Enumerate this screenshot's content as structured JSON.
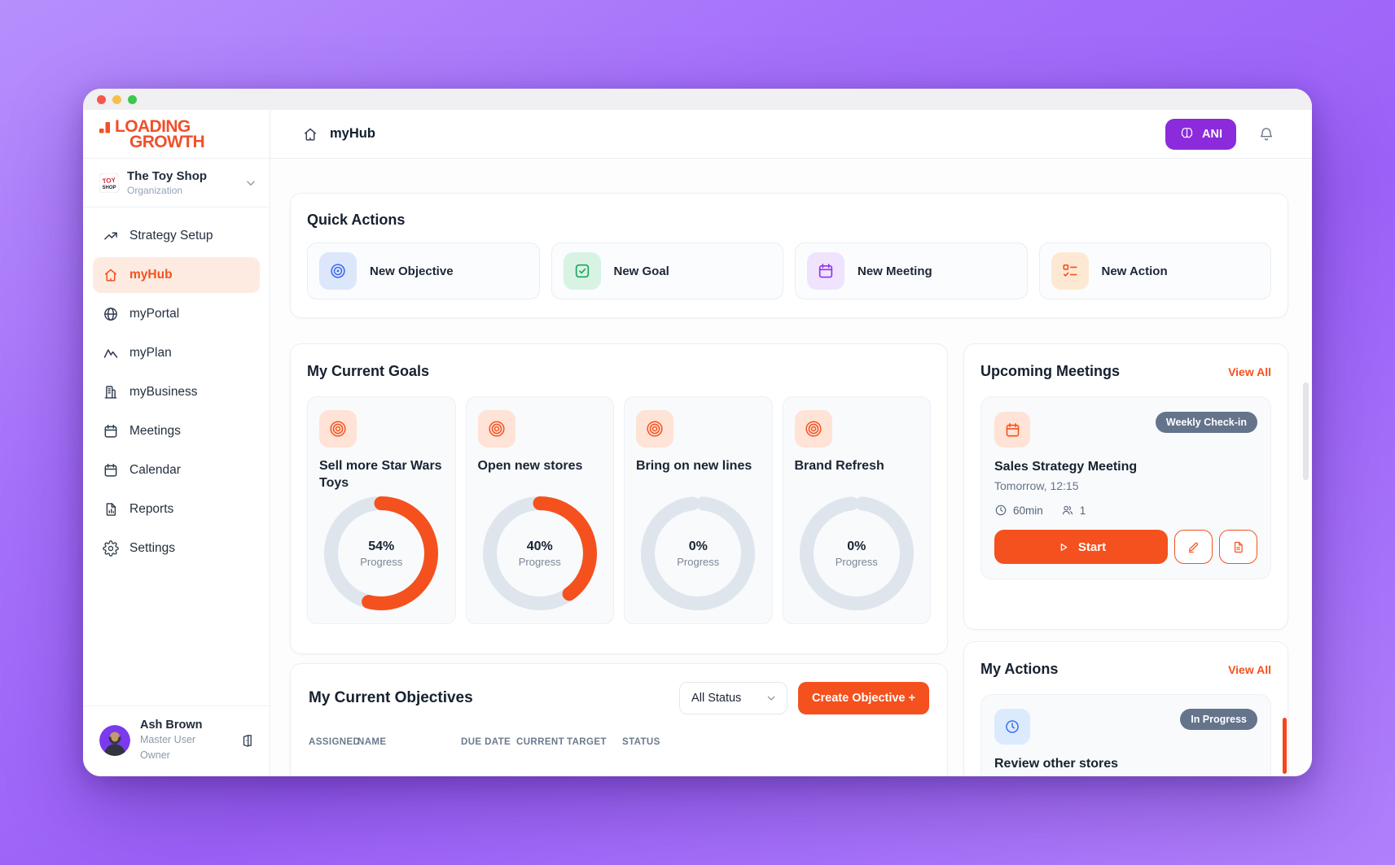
{
  "brand": {
    "line1": "LOADING",
    "line2": "GROWTH",
    "color": "#F0502A"
  },
  "sidebar": {
    "org": {
      "name": "The Toy Shop",
      "subtitle": "Organization",
      "icon": "toy-shop-logo"
    },
    "items": [
      {
        "label": "Strategy Setup",
        "icon": "trending-up-icon",
        "active": false
      },
      {
        "label": "myHub",
        "icon": "home-icon",
        "active": true
      },
      {
        "label": "myPortal",
        "icon": "globe-icon",
        "active": false
      },
      {
        "label": "myPlan",
        "icon": "mountain-icon",
        "active": false
      },
      {
        "label": "myBusiness",
        "icon": "building-icon",
        "active": false
      },
      {
        "label": "Meetings",
        "icon": "calendar-icon",
        "active": false
      },
      {
        "label": "Calendar",
        "icon": "calendar-icon",
        "active": false
      },
      {
        "label": "Reports",
        "icon": "file-chart-icon",
        "active": false
      },
      {
        "label": "Settings",
        "icon": "gear-icon",
        "active": false
      }
    ],
    "user": {
      "name": "Ash Brown",
      "role_line1": "Master User",
      "role_line2": "Owner"
    }
  },
  "topbar": {
    "page_title": "myHub",
    "ani_label": "ANI"
  },
  "quick_actions": {
    "title": "Quick Actions",
    "items": [
      {
        "label": "New Objective",
        "icon": "target-icon",
        "tile_bg": "#DCE7FB",
        "icon_color": "#3E68F0"
      },
      {
        "label": "New Goal",
        "icon": "check-square-icon",
        "tile_bg": "#D8F3E4",
        "icon_color": "#1CA35B"
      },
      {
        "label": "New Meeting",
        "icon": "calendar-icon",
        "tile_bg": "#EFE3FD",
        "icon_color": "#9233EA"
      },
      {
        "label": "New Action",
        "icon": "checklist-icon",
        "tile_bg": "#FDE9D3",
        "icon_color": "#F4511E"
      }
    ]
  },
  "goals": {
    "title": "My Current Goals",
    "progress_label": "Progress",
    "ring_color": "#F4511E",
    "track_color": "#DFE5ED",
    "items": [
      {
        "name": "Sell more Star Wars Toys",
        "progress_pct": 54
      },
      {
        "name": "Open new stores",
        "progress_pct": 40
      },
      {
        "name": "Bring on new lines",
        "progress_pct": 0
      },
      {
        "name": "Brand Refresh",
        "progress_pct": 0
      }
    ]
  },
  "chart_data": {
    "type": "donut_set",
    "title": "My Current Goals",
    "unit": "%",
    "series": [
      {
        "name": "Sell more Star Wars Toys",
        "value": 54
      },
      {
        "name": "Open new stores",
        "value": 40
      },
      {
        "name": "Bring on new lines",
        "value": 0
      },
      {
        "name": "Brand Refresh",
        "value": 0
      }
    ]
  },
  "meetings": {
    "title": "Upcoming Meetings",
    "view_all": "View All",
    "card": {
      "badge": "Weekly Check-in",
      "title": "Sales Strategy Meeting",
      "when": "Tomorrow, 12:15",
      "duration": "60min",
      "attendees": "1",
      "start_label": "Start"
    }
  },
  "my_actions": {
    "title": "My Actions",
    "view_all": "View All",
    "card": {
      "badge": "In Progress",
      "title": "Review other stores"
    }
  },
  "objectives": {
    "title": "My Current Objectives",
    "status_filter": "All Status",
    "create_button": "Create Objective +",
    "columns": [
      "ASSIGNED",
      "NAME",
      "DUE DATE",
      "CURRENT",
      "TARGET",
      "STATUS"
    ]
  },
  "colors": {
    "accent_orange": "#F4511E",
    "ani_purple": "#8B2BDB",
    "badge_slate": "#64748B",
    "desktop_purple": "#A26EF9"
  }
}
